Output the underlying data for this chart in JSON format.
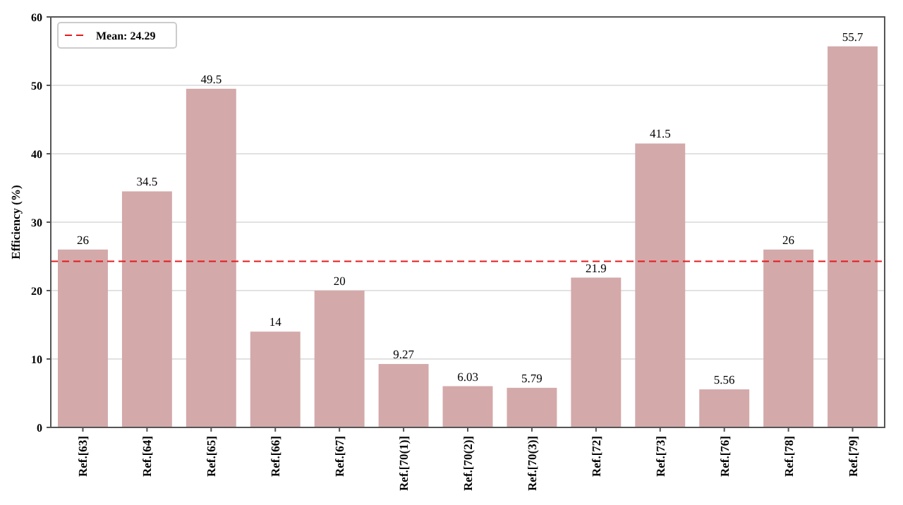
{
  "chart_data": {
    "type": "bar",
    "ylabel": "Efficiency (%)",
    "categories": [
      "Ref.[63]",
      "Ref.[64]",
      "Ref.[65]",
      "Ref.[66]",
      "Ref.[67]",
      "Ref.[70(1)]",
      "Ref.[70(2)]",
      "Ref.[70(3)]",
      "Ref.[72]",
      "Ref.[73]",
      "Ref.[76]",
      "Ref.[78]",
      "Ref.[79]"
    ],
    "values": [
      26,
      34.5,
      49.5,
      14,
      20,
      9.27,
      6.03,
      5.79,
      21.9,
      41.5,
      5.56,
      26,
      55.7
    ],
    "color": "#d4a9aa",
    "ylim": [
      0,
      60
    ],
    "yticks": [
      0,
      10,
      20,
      30,
      40,
      50,
      60
    ],
    "grid": "y",
    "data_labels": true,
    "ref_lines": [
      {
        "axis": "y",
        "value": 24.29,
        "label": "Mean: 24.29",
        "color": "#e41a1c",
        "line_style": "dashed"
      }
    ],
    "legend": "top left"
  }
}
